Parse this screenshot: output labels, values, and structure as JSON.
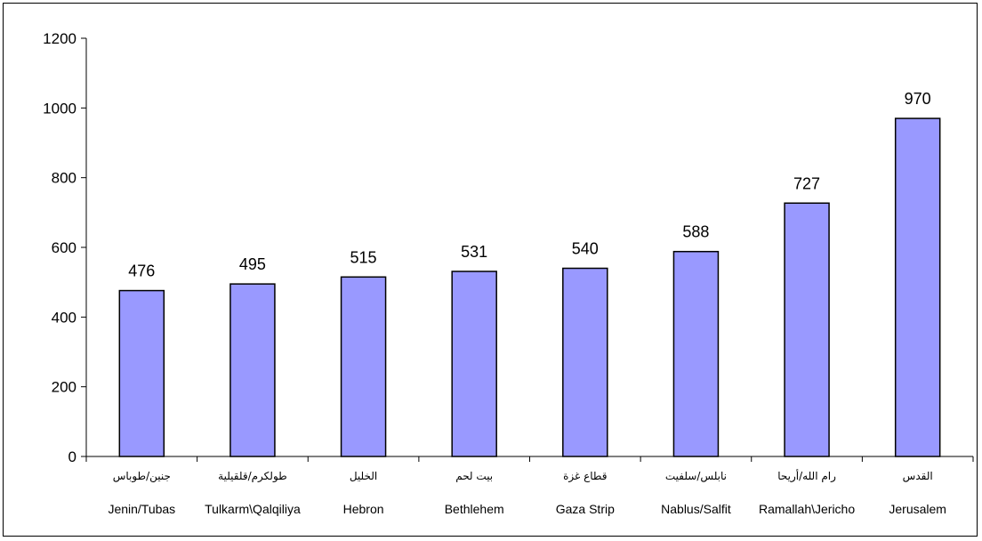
{
  "chart_data": {
    "type": "bar",
    "title": "",
    "xlabel": "",
    "ylabel": "",
    "categories": [
      {
        "arabic": "جنين/طوباس",
        "english": "Jenin/Tubas"
      },
      {
        "arabic": "طولكرم/قلقيلية",
        "english": "Tulkarm\\Qalqiliya"
      },
      {
        "arabic": "الخليل",
        "english": "Hebron"
      },
      {
        "arabic": "بيت لحم",
        "english": "Bethlehem"
      },
      {
        "arabic": "قطاع غزة",
        "english": "Gaza Strip"
      },
      {
        "arabic": "نابلس/سلفيت",
        "english": "Nablus/Salfit"
      },
      {
        "arabic": "رام الله/أريحا",
        "english": "Ramallah\\Jericho"
      },
      {
        "arabic": "القدس",
        "english": "Jerusalem"
      }
    ],
    "values": [
      476,
      495,
      515,
      531,
      540,
      588,
      727,
      970
    ],
    "data_labels": [
      "476",
      "495",
      "515",
      "531",
      "540",
      "588",
      "727",
      "970"
    ],
    "ylim": [
      0,
      1200
    ],
    "yticks": [
      "0",
      "200",
      "400",
      "600",
      "800",
      "1000",
      "1200"
    ],
    "grid": false,
    "legend": "none",
    "colors": {
      "bar_fill": "#9999ff",
      "bar_stroke": "#000000",
      "axis": "#000000"
    }
  }
}
